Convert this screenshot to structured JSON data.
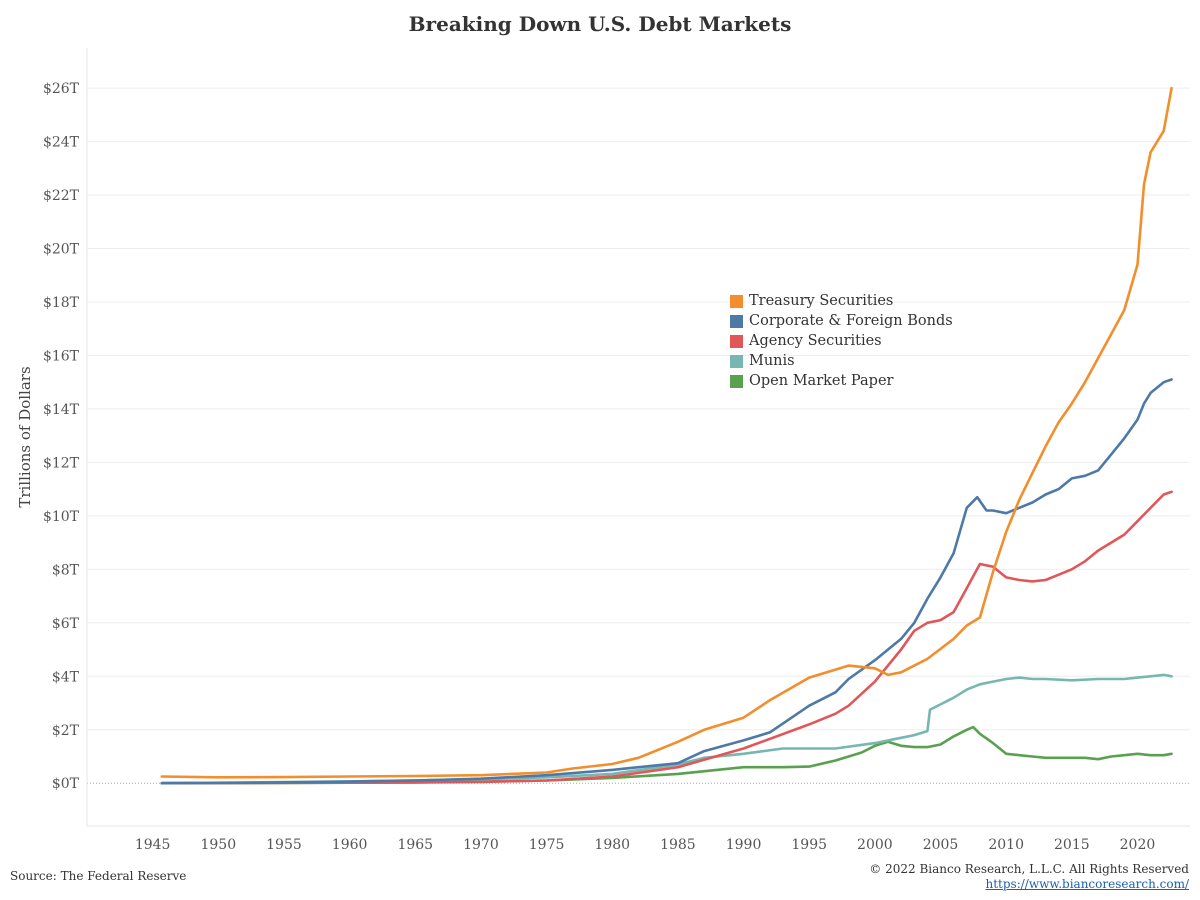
{
  "chart_data": {
    "type": "line",
    "title": "Breaking Down U.S. Debt Markets",
    "ylabel": "Trillions of Dollars",
    "xlabel": "",
    "xlim": [
      1940,
      2024
    ],
    "ylim": [
      -1.6,
      27.5
    ],
    "x_ticks": [
      "1945",
      "1950",
      "1955",
      "1960",
      "1965",
      "1970",
      "1975",
      "1980",
      "1985",
      "1990",
      "1995",
      "2000",
      "2005",
      "2010",
      "2015",
      "2020"
    ],
    "y_ticks": [
      {
        "value": 0,
        "label": "$0T"
      },
      {
        "value": 2,
        "label": "$2T"
      },
      {
        "value": 4,
        "label": "$4T"
      },
      {
        "value": 6,
        "label": "$6T"
      },
      {
        "value": 8,
        "label": "$8T"
      },
      {
        "value": 10,
        "label": "$10T"
      },
      {
        "value": 12,
        "label": "$12T"
      },
      {
        "value": 14,
        "label": "$14T"
      },
      {
        "value": 16,
        "label": "$16T"
      },
      {
        "value": 18,
        "label": "$18T"
      },
      {
        "value": 20,
        "label": "$20T"
      },
      {
        "value": 22,
        "label": "$22T"
      },
      {
        "value": 24,
        "label": "$24T"
      },
      {
        "value": 26,
        "label": "$26T"
      }
    ],
    "grid": true,
    "legend_position": "center-right",
    "series": [
      {
        "name": "Treasury Securities",
        "color": "#f28e2b",
        "points": [
          [
            1945.7,
            0.25
          ],
          [
            1950,
            0.22
          ],
          [
            1955,
            0.23
          ],
          [
            1960,
            0.25
          ],
          [
            1965,
            0.27
          ],
          [
            1970,
            0.3
          ],
          [
            1975,
            0.4
          ],
          [
            1977,
            0.55
          ],
          [
            1980,
            0.72
          ],
          [
            1982,
            0.95
          ],
          [
            1985,
            1.55
          ],
          [
            1987,
            2.0
          ],
          [
            1990,
            2.45
          ],
          [
            1992,
            3.1
          ],
          [
            1995,
            3.95
          ],
          [
            1997,
            4.25
          ],
          [
            1998,
            4.4
          ],
          [
            2000,
            4.3
          ],
          [
            2001,
            4.05
          ],
          [
            2002,
            4.15
          ],
          [
            2004,
            4.65
          ],
          [
            2006,
            5.4
          ],
          [
            2007,
            5.9
          ],
          [
            2008,
            6.2
          ],
          [
            2009,
            7.9
          ],
          [
            2010,
            9.4
          ],
          [
            2011,
            10.6
          ],
          [
            2012,
            11.6
          ],
          [
            2013,
            12.6
          ],
          [
            2014,
            13.5
          ],
          [
            2015,
            14.2
          ],
          [
            2016,
            15.0
          ],
          [
            2017,
            15.9
          ],
          [
            2018,
            16.8
          ],
          [
            2019,
            17.7
          ],
          [
            2020,
            19.4
          ],
          [
            2020.5,
            22.4
          ],
          [
            2021,
            23.6
          ],
          [
            2022,
            24.4
          ],
          [
            2022.6,
            26.0
          ]
        ]
      },
      {
        "name": "Corporate & Foreign Bonds",
        "color": "#4e79a7",
        "points": [
          [
            1945.7,
            0.0
          ],
          [
            1950,
            0.01
          ],
          [
            1955,
            0.03
          ],
          [
            1960,
            0.06
          ],
          [
            1965,
            0.1
          ],
          [
            1970,
            0.17
          ],
          [
            1975,
            0.3
          ],
          [
            1980,
            0.5
          ],
          [
            1985,
            0.75
          ],
          [
            1987,
            1.2
          ],
          [
            1990,
            1.6
          ],
          [
            1992,
            1.9
          ],
          [
            1995,
            2.9
          ],
          [
            1997,
            3.4
          ],
          [
            1998,
            3.9
          ],
          [
            2000,
            4.6
          ],
          [
            2002,
            5.4
          ],
          [
            2003,
            6.0
          ],
          [
            2004,
            6.9
          ],
          [
            2005,
            7.7
          ],
          [
            2006,
            8.6
          ],
          [
            2007,
            10.3
          ],
          [
            2007.8,
            10.7
          ],
          [
            2008.5,
            10.2
          ],
          [
            2009,
            10.2
          ],
          [
            2010,
            10.1
          ],
          [
            2011,
            10.3
          ],
          [
            2012,
            10.5
          ],
          [
            2013,
            10.8
          ],
          [
            2014,
            11.0
          ],
          [
            2015,
            11.4
          ],
          [
            2016,
            11.5
          ],
          [
            2017,
            11.7
          ],
          [
            2018,
            12.3
          ],
          [
            2019,
            12.9
          ],
          [
            2020,
            13.6
          ],
          [
            2020.5,
            14.2
          ],
          [
            2021,
            14.6
          ],
          [
            2022,
            15.0
          ],
          [
            2022.6,
            15.1
          ]
        ]
      },
      {
        "name": "Agency Securities",
        "color": "#e15759",
        "points": [
          [
            1945.7,
            0.0
          ],
          [
            1950,
            0.01
          ],
          [
            1960,
            0.02
          ],
          [
            1965,
            0.03
          ],
          [
            1970,
            0.05
          ],
          [
            1975,
            0.1
          ],
          [
            1980,
            0.25
          ],
          [
            1985,
            0.6
          ],
          [
            1990,
            1.3
          ],
          [
            1995,
            2.2
          ],
          [
            1997,
            2.6
          ],
          [
            1998,
            2.9
          ],
          [
            2000,
            3.8
          ],
          [
            2002,
            5.0
          ],
          [
            2003,
            5.7
          ],
          [
            2004,
            6.0
          ],
          [
            2005,
            6.1
          ],
          [
            2006,
            6.4
          ],
          [
            2007,
            7.3
          ],
          [
            2008,
            8.2
          ],
          [
            2009,
            8.1
          ],
          [
            2010,
            7.7
          ],
          [
            2011,
            7.6
          ],
          [
            2012,
            7.55
          ],
          [
            2013,
            7.6
          ],
          [
            2014,
            7.8
          ],
          [
            2015,
            8.0
          ],
          [
            2016,
            8.3
          ],
          [
            2017,
            8.7
          ],
          [
            2018,
            9.0
          ],
          [
            2019,
            9.3
          ],
          [
            2020,
            9.8
          ],
          [
            2021,
            10.3
          ],
          [
            2022,
            10.8
          ],
          [
            2022.6,
            10.9
          ]
        ]
      },
      {
        "name": "Munis",
        "color": "#76b7b2",
        "points": [
          [
            1945.7,
            0.0
          ],
          [
            1950,
            0.02
          ],
          [
            1960,
            0.07
          ],
          [
            1970,
            0.15
          ],
          [
            1975,
            0.22
          ],
          [
            1980,
            0.35
          ],
          [
            1985,
            0.7
          ],
          [
            1987,
            0.95
          ],
          [
            1990,
            1.1
          ],
          [
            1993,
            1.3
          ],
          [
            1995,
            1.3
          ],
          [
            1997,
            1.3
          ],
          [
            2000,
            1.5
          ],
          [
            2003,
            1.8
          ],
          [
            2004,
            1.95
          ],
          [
            2004.2,
            2.75
          ],
          [
            2005,
            2.95
          ],
          [
            2006,
            3.2
          ],
          [
            2007,
            3.5
          ],
          [
            2008,
            3.7
          ],
          [
            2009,
            3.8
          ],
          [
            2010,
            3.9
          ],
          [
            2011,
            3.95
          ],
          [
            2012,
            3.9
          ],
          [
            2013,
            3.9
          ],
          [
            2015,
            3.85
          ],
          [
            2017,
            3.9
          ],
          [
            2019,
            3.9
          ],
          [
            2020,
            3.95
          ],
          [
            2021,
            4.0
          ],
          [
            2022,
            4.05
          ],
          [
            2022.6,
            4.0
          ]
        ]
      },
      {
        "name": "Open Market Paper",
        "color": "#59a14f",
        "points": [
          [
            1945.7,
            0.0
          ],
          [
            1955,
            0.01
          ],
          [
            1960,
            0.02
          ],
          [
            1965,
            0.03
          ],
          [
            1970,
            0.06
          ],
          [
            1975,
            0.1
          ],
          [
            1980,
            0.2
          ],
          [
            1985,
            0.35
          ],
          [
            1990,
            0.6
          ],
          [
            1993,
            0.6
          ],
          [
            1995,
            0.62
          ],
          [
            1997,
            0.85
          ],
          [
            1999,
            1.15
          ],
          [
            2000,
            1.4
          ],
          [
            2001,
            1.55
          ],
          [
            2002,
            1.4
          ],
          [
            2003,
            1.35
          ],
          [
            2004,
            1.35
          ],
          [
            2005,
            1.45
          ],
          [
            2006,
            1.75
          ],
          [
            2007,
            2.0
          ],
          [
            2007.5,
            2.1
          ],
          [
            2008,
            1.85
          ],
          [
            2009,
            1.5
          ],
          [
            2010,
            1.1
          ],
          [
            2011,
            1.05
          ],
          [
            2012,
            1.0
          ],
          [
            2013,
            0.95
          ],
          [
            2014,
            0.95
          ],
          [
            2015,
            0.95
          ],
          [
            2016,
            0.95
          ],
          [
            2017,
            0.9
          ],
          [
            2018,
            1.0
          ],
          [
            2019,
            1.05
          ],
          [
            2020,
            1.1
          ],
          [
            2021,
            1.05
          ],
          [
            2022,
            1.05
          ],
          [
            2022.6,
            1.1
          ]
        ]
      }
    ]
  },
  "footer": {
    "source": "Source: The Federal Reserve",
    "copyright": "© 2022 Bianco Research, L.L.C. All Rights Reserved",
    "url": "https://www.biancoresearch.com/"
  }
}
